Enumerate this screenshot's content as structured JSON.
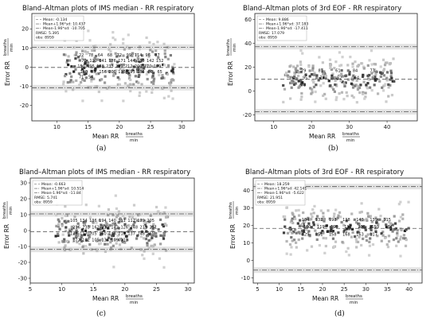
{
  "chart_data": [
    {
      "type": "scatter",
      "title": "Bland–Altman plots of IMS median - RR respiratory",
      "xlabel": "Mean RR",
      "ylabel": "Error RR",
      "unit_num": "breaths",
      "unit_den": "min",
      "caption": "(a)",
      "xlim": [
        6,
        32
      ],
      "ylim": [
        -28,
        28
      ],
      "xticks": [
        "10",
        "15",
        "20",
        "25",
        "30"
      ],
      "xtick_values": [
        10,
        15,
        20,
        25,
        30
      ],
      "yticks": [
        "-20",
        "-10",
        "0",
        "10",
        "20"
      ],
      "ytick_values": [
        -20,
        -10,
        0,
        10,
        20
      ],
      "mean": -0.134,
      "upper_loa": 10.437,
      "lower_loa": -10.705,
      "legend": {
        "mean": "Mean: -0.134",
        "upper": "Mean+1.96*sd: 10.437",
        "lower": "Mean-1.96*sd: -10.705",
        "rmse": "RMSE: 5.395",
        "obs": "obs: 8959"
      },
      "cloud": {
        "x_min": 11,
        "x_max": 29,
        "y_spread": 16,
        "y_center": -0.134
      },
      "annotations": [
        "22",
        "78",
        "64",
        "68",
        "72",
        "99",
        "114",
        "96",
        "87",
        "70",
        "120",
        "141",
        "176",
        "171",
        "144",
        "130",
        "142",
        "152",
        "150",
        "195",
        "188",
        "233",
        "221",
        "212",
        "200",
        "170",
        "169",
        "140",
        "85",
        "156",
        "200",
        "175",
        "193",
        "186",
        "80",
        "65",
        "71",
        "54"
      ]
    },
    {
      "type": "scatter",
      "title": "Bland–Altman plots of 3rd EOF - RR respiratory",
      "xlabel": "Mean RR",
      "ylabel": "Error RR",
      "unit_num": "breaths",
      "unit_den": "min",
      "caption": "(b)",
      "xlim": [
        5,
        48
      ],
      "ylim": [
        -25,
        65
      ],
      "xticks": [
        "10",
        "20",
        "30",
        "40"
      ],
      "xtick_values": [
        10,
        20,
        30,
        40
      ],
      "yticks": [
        "-20",
        "0",
        "20",
        "40",
        "60"
      ],
      "ytick_values": [
        -20,
        0,
        20,
        40,
        60
      ],
      "mean": 9.886,
      "upper_loa": 37.183,
      "lower_loa": -17.411,
      "legend": {
        "mean": "Mean: 9.886",
        "upper": "Mean+1.96*sd: 37.183",
        "lower": "Mean-1.96*sd: -17.411",
        "rmse": "RMSE: 17.079",
        "obs": "obs: 8959"
      },
      "cloud": {
        "x_min": 12,
        "x_max": 42,
        "y_spread": 20,
        "y_center": 9.886
      },
      "annotations": [
        "79",
        "81",
        "61",
        "84",
        "73",
        "95",
        "78",
        "52",
        "64",
        "62",
        "73"
      ]
    },
    {
      "type": "scatter",
      "title": "Bland–Altman plots of IMS median - RR respiratory",
      "xlabel": "Mean RR",
      "ylabel": "Error RR",
      "unit_num": "breaths",
      "unit_den": "min",
      "caption": "(c)",
      "xlim": [
        5,
        31
      ],
      "ylim": [
        -33,
        33
      ],
      "xticks": [
        "5",
        "10",
        "15",
        "20",
        "25",
        "30"
      ],
      "xtick_values": [
        5,
        10,
        15,
        20,
        25,
        30
      ],
      "yticks": [
        "-30",
        "-20",
        "-10",
        "0",
        "10",
        "20",
        "30"
      ],
      "ytick_values": [
        -30,
        -20,
        -10,
        0,
        10,
        20,
        30
      ],
      "mean": -0.663,
      "upper_loa": 10.514,
      "lower_loa": -11.84,
      "legend": {
        "mean": "Mean: -0.663",
        "upper": "Mean+1.96*sd: 10.514",
        "lower": "Mean-1.96*sd: -11.84",
        "rmse": "RMSE: 5.741",
        "obs": "obs: 8959"
      },
      "cloud": {
        "x_min": 9,
        "x_max": 27,
        "y_spread": 18,
        "y_center": -0.663
      },
      "annotations": [
        "105",
        "134",
        "136",
        "194",
        "140",
        "111",
        "112",
        "179",
        "205",
        "216",
        "233",
        "162",
        "122",
        "142",
        "126",
        "248",
        "211",
        "251",
        "179",
        "117",
        "205",
        "150",
        "148",
        "219",
        "137",
        "248",
        "159",
        "172",
        "102",
        "105",
        "134",
        "109",
        "113"
      ]
    },
    {
      "type": "scatter",
      "title": "Bland–Altman plots of 3rd EOF - RR respiratory",
      "xlabel": "Mean RR",
      "ylabel": "Error RR",
      "unit_num": "breaths",
      "unit_den": "min",
      "caption": "(d)",
      "xlim": [
        4,
        43
      ],
      "ylim": [
        -13,
        47
      ],
      "xticks": [
        "5",
        "10",
        "15",
        "20",
        "25",
        "30",
        "35",
        "40"
      ],
      "xtick_values": [
        5,
        10,
        15,
        20,
        25,
        30,
        35,
        40
      ],
      "yticks": [
        "-10",
        "0",
        "10",
        "20",
        "30",
        "40"
      ],
      "ytick_values": [
        -10,
        0,
        10,
        20,
        30,
        40
      ],
      "mean": 18.259,
      "upper_loa": 42.141,
      "lower_loa": -5.622,
      "legend": {
        "mean": "Mean: 18.259",
        "upper": "Mean+1.96*sd: 42.141",
        "lower": "Mean-1.96*sd: -5.622",
        "rmse": "RMSE: 21.951",
        "obs": "obs: 8959"
      },
      "cloud": {
        "x_min": 11,
        "x_max": 40,
        "y_spread": 14,
        "y_center": 18.259
      },
      "annotations": [
        "104",
        "132",
        "198",
        "138",
        "143",
        "139",
        "115",
        "160",
        "119",
        "190",
        "111",
        "203",
        "159",
        "101",
        "129",
        "151",
        "158",
        "168",
        "163",
        "117"
      ]
    }
  ]
}
